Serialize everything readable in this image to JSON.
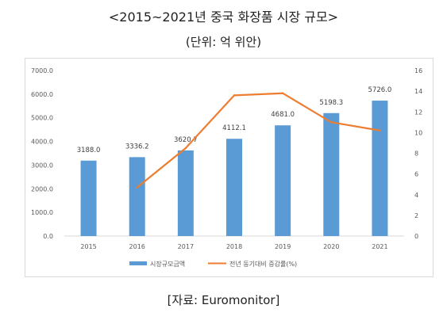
{
  "header": {
    "title": "<2015~2021년 중국 화장품 시장 규모>",
    "subtitle": "(단위: 억 위안)"
  },
  "footer": {
    "source": "[자료: Euromonitor]"
  },
  "chart_data": {
    "type": "bar",
    "categories": [
      "2015",
      "2016",
      "2017",
      "2018",
      "2019",
      "2020",
      "2021"
    ],
    "series": [
      {
        "name": "시장규모금액",
        "type": "bar",
        "axis": "left",
        "color": "#5b9bd5",
        "values": [
          3188.0,
          3336.2,
          3620.7,
          4112.1,
          4681.0,
          5198.3,
          5726.0
        ],
        "labels": [
          "3188.0",
          "3336.2",
          "3620.7",
          "4112.1",
          "4681.0",
          "5198.3",
          "5726.0"
        ]
      },
      {
        "name": "전년 동기대비 증감률(%)",
        "type": "line",
        "axis": "right",
        "color": "#ed7d31",
        "values": [
          null,
          4.7,
          8.5,
          13.6,
          13.8,
          11.0,
          10.2
        ]
      }
    ],
    "y_left": {
      "ylim": [
        0,
        7000
      ],
      "ticks": [
        0,
        1000,
        2000,
        3000,
        4000,
        5000,
        6000,
        7000
      ],
      "tick_labels": [
        "0.0",
        "1000.0",
        "2000.0",
        "3000.0",
        "4000.0",
        "5000.0",
        "6000.0",
        "7000.0"
      ]
    },
    "y_right": {
      "ylim": [
        0,
        16
      ],
      "ticks": [
        0,
        2,
        4,
        6,
        8,
        10,
        12,
        14,
        16
      ],
      "tick_labels": [
        "0",
        "2",
        "4",
        "6",
        "8",
        "10",
        "12",
        "14",
        "16"
      ]
    },
    "legend_position": "bottom",
    "grid": false
  }
}
